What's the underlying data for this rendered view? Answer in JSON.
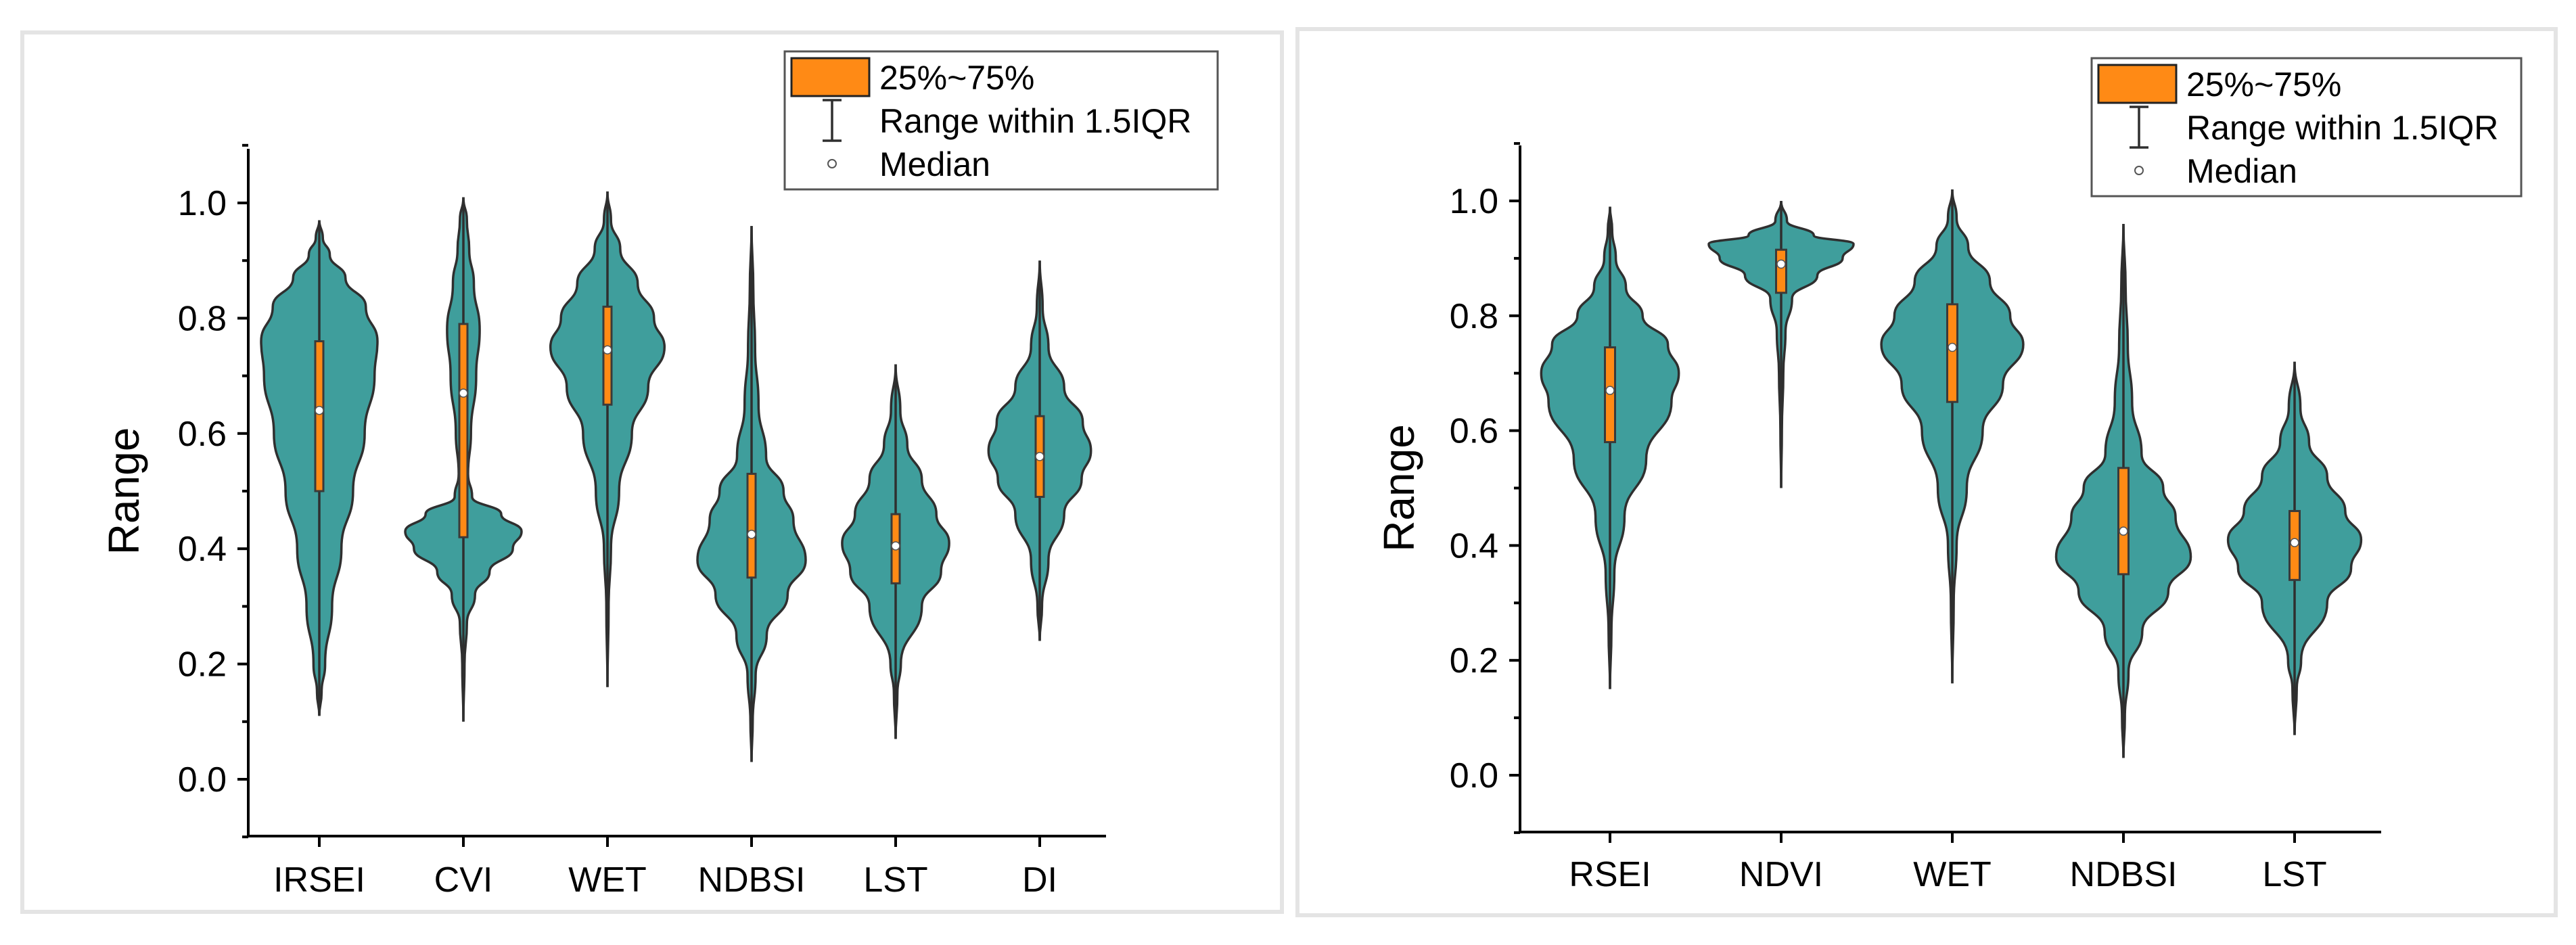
{
  "chart_data": [
    {
      "type": "violin",
      "ylabel": "Range",
      "xlabel": "",
      "ylim": [
        -0.1,
        1.1
      ],
      "yticks": [
        "0.0",
        "0.2",
        "0.4",
        "0.6",
        "0.8",
        "1.0"
      ],
      "legend": {
        "position": "top-right",
        "items": [
          {
            "symbol": "box",
            "label": "25%~75%"
          },
          {
            "symbol": "whisker",
            "label": "Range within 1.5IQR"
          },
          {
            "symbol": "dot",
            "label": "Median"
          }
        ]
      },
      "categories": [
        "IRSEI",
        "CVI",
        "WET",
        "NDBSI",
        "LST",
        "DI"
      ],
      "series": [
        {
          "name": "IRSEI",
          "min": 0.11,
          "max": 0.97,
          "q1": 0.5,
          "median": 0.64,
          "q3": 0.76,
          "density": [
            [
              0.11,
              0.0
            ],
            [
              0.15,
              0.04
            ],
            [
              0.2,
              0.1
            ],
            [
              0.3,
              0.22
            ],
            [
              0.4,
              0.38
            ],
            [
              0.5,
              0.58
            ],
            [
              0.6,
              0.78
            ],
            [
              0.7,
              0.95
            ],
            [
              0.76,
              1.0
            ],
            [
              0.82,
              0.8
            ],
            [
              0.87,
              0.45
            ],
            [
              0.91,
              0.18
            ],
            [
              0.94,
              0.06
            ],
            [
              0.97,
              0.0
            ]
          ]
        },
        {
          "name": "CVI",
          "min": 0.1,
          "max": 1.01,
          "q1": 0.42,
          "median": 0.67,
          "q3": 0.79,
          "density": [
            [
              0.1,
              0.0
            ],
            [
              0.2,
              0.02
            ],
            [
              0.27,
              0.06
            ],
            [
              0.32,
              0.2
            ],
            [
              0.36,
              0.45
            ],
            [
              0.4,
              0.85
            ],
            [
              0.43,
              1.0
            ],
            [
              0.46,
              0.65
            ],
            [
              0.49,
              0.15
            ],
            [
              0.53,
              0.08
            ],
            [
              0.6,
              0.13
            ],
            [
              0.7,
              0.22
            ],
            [
              0.78,
              0.28
            ],
            [
              0.86,
              0.18
            ],
            [
              0.92,
              0.1
            ],
            [
              0.97,
              0.06
            ],
            [
              1.01,
              0.0
            ]
          ]
        },
        {
          "name": "WET",
          "min": 0.16,
          "max": 1.02,
          "q1": 0.65,
          "median": 0.745,
          "q3": 0.82,
          "density": [
            [
              0.16,
              0.0
            ],
            [
              0.3,
              0.02
            ],
            [
              0.4,
              0.06
            ],
            [
              0.5,
              0.2
            ],
            [
              0.6,
              0.42
            ],
            [
              0.68,
              0.7
            ],
            [
              0.75,
              0.98
            ],
            [
              0.8,
              0.8
            ],
            [
              0.86,
              0.52
            ],
            [
              0.92,
              0.22
            ],
            [
              0.97,
              0.06
            ],
            [
              1.02,
              0.0
            ]
          ]
        },
        {
          "name": "NDBSI",
          "min": 0.03,
          "max": 0.96,
          "q1": 0.35,
          "median": 0.425,
          "q3": 0.53,
          "density": [
            [
              0.03,
              0.0
            ],
            [
              0.1,
              0.02
            ],
            [
              0.18,
              0.07
            ],
            [
              0.25,
              0.26
            ],
            [
              0.32,
              0.62
            ],
            [
              0.38,
              0.93
            ],
            [
              0.45,
              0.72
            ],
            [
              0.5,
              0.55
            ],
            [
              0.56,
              0.25
            ],
            [
              0.65,
              0.12
            ],
            [
              0.75,
              0.06
            ],
            [
              0.85,
              0.03
            ],
            [
              0.96,
              0.0
            ]
          ]
        },
        {
          "name": "LST",
          "min": 0.07,
          "max": 0.72,
          "q1": 0.34,
          "median": 0.405,
          "q3": 0.46,
          "density": [
            [
              0.07,
              0.0
            ],
            [
              0.15,
              0.03
            ],
            [
              0.2,
              0.09
            ],
            [
              0.3,
              0.45
            ],
            [
              0.36,
              0.78
            ],
            [
              0.41,
              0.92
            ],
            [
              0.46,
              0.7
            ],
            [
              0.52,
              0.45
            ],
            [
              0.58,
              0.2
            ],
            [
              0.64,
              0.08
            ],
            [
              0.72,
              0.0
            ]
          ]
        },
        {
          "name": "DI",
          "min": 0.24,
          "max": 0.9,
          "q1": 0.49,
          "median": 0.56,
          "q3": 0.63,
          "density": [
            [
              0.24,
              0.0
            ],
            [
              0.3,
              0.04
            ],
            [
              0.38,
              0.15
            ],
            [
              0.46,
              0.42
            ],
            [
              0.52,
              0.72
            ],
            [
              0.57,
              0.88
            ],
            [
              0.62,
              0.74
            ],
            [
              0.68,
              0.42
            ],
            [
              0.75,
              0.15
            ],
            [
              0.82,
              0.05
            ],
            [
              0.9,
              0.0
            ]
          ]
        }
      ],
      "colors": {
        "violin": "#3f9e9c",
        "box": "#ff8a15"
      }
    },
    {
      "type": "violin",
      "ylabel": "Range",
      "xlabel": "",
      "ylim": [
        -0.1,
        1.1
      ],
      "yticks": [
        "0.0",
        "0.2",
        "0.4",
        "0.6",
        "0.8",
        "1.0"
      ],
      "legend": {
        "position": "top-right",
        "items": [
          {
            "symbol": "box",
            "label": "25%~75%"
          },
          {
            "symbol": "whisker",
            "label": "Range within 1.5IQR"
          },
          {
            "symbol": "dot",
            "label": "Median"
          }
        ]
      },
      "categories": [
        "RSEI",
        "NDVI",
        "WET",
        "NDBSI",
        "LST"
      ],
      "series": [
        {
          "name": "RSEI",
          "min": 0.15,
          "max": 0.99,
          "q1": 0.58,
          "median": 0.67,
          "q3": 0.745,
          "density": [
            [
              0.15,
              0.0
            ],
            [
              0.25,
              0.02
            ],
            [
              0.35,
              0.06
            ],
            [
              0.45,
              0.2
            ],
            [
              0.55,
              0.5
            ],
            [
              0.65,
              0.85
            ],
            [
              0.7,
              0.95
            ],
            [
              0.75,
              0.8
            ],
            [
              0.8,
              0.45
            ],
            [
              0.85,
              0.22
            ],
            [
              0.9,
              0.08
            ],
            [
              0.95,
              0.03
            ],
            [
              0.99,
              0.0
            ]
          ]
        },
        {
          "name": "NDVI",
          "min": 0.5,
          "max": 1.0,
          "q1": 0.84,
          "median": 0.89,
          "q3": 0.915,
          "density": [
            [
              0.5,
              0.0
            ],
            [
              0.6,
              0.01
            ],
            [
              0.7,
              0.03
            ],
            [
              0.77,
              0.06
            ],
            [
              0.83,
              0.15
            ],
            [
              0.87,
              0.5
            ],
            [
              0.9,
              0.85
            ],
            [
              0.925,
              1.0
            ],
            [
              0.94,
              0.45
            ],
            [
              0.965,
              0.08
            ],
            [
              1.0,
              0.0
            ]
          ]
        },
        {
          "name": "WET",
          "min": 0.16,
          "max": 1.02,
          "q1": 0.65,
          "median": 0.745,
          "q3": 0.82,
          "density": [
            [
              0.16,
              0.0
            ],
            [
              0.3,
              0.02
            ],
            [
              0.4,
              0.06
            ],
            [
              0.5,
              0.2
            ],
            [
              0.6,
              0.42
            ],
            [
              0.68,
              0.7
            ],
            [
              0.75,
              0.98
            ],
            [
              0.8,
              0.8
            ],
            [
              0.86,
              0.52
            ],
            [
              0.92,
              0.22
            ],
            [
              0.97,
              0.06
            ],
            [
              1.02,
              0.0
            ]
          ]
        },
        {
          "name": "NDBSI",
          "min": 0.03,
          "max": 0.96,
          "q1": 0.35,
          "median": 0.425,
          "q3": 0.535,
          "density": [
            [
              0.03,
              0.0
            ],
            [
              0.1,
              0.02
            ],
            [
              0.18,
              0.07
            ],
            [
              0.25,
              0.26
            ],
            [
              0.32,
              0.62
            ],
            [
              0.38,
              0.93
            ],
            [
              0.45,
              0.72
            ],
            [
              0.5,
              0.55
            ],
            [
              0.56,
              0.25
            ],
            [
              0.65,
              0.12
            ],
            [
              0.75,
              0.06
            ],
            [
              0.85,
              0.03
            ],
            [
              0.96,
              0.0
            ]
          ]
        },
        {
          "name": "LST",
          "min": 0.07,
          "max": 0.72,
          "q1": 0.34,
          "median": 0.405,
          "q3": 0.46,
          "density": [
            [
              0.07,
              0.0
            ],
            [
              0.15,
              0.03
            ],
            [
              0.2,
              0.09
            ],
            [
              0.3,
              0.45
            ],
            [
              0.36,
              0.78
            ],
            [
              0.41,
              0.92
            ],
            [
              0.46,
              0.7
            ],
            [
              0.52,
              0.45
            ],
            [
              0.58,
              0.2
            ],
            [
              0.64,
              0.08
            ],
            [
              0.72,
              0.0
            ]
          ]
        }
      ],
      "colors": {
        "violin": "#3f9e9c",
        "box": "#ff8a15"
      }
    }
  ]
}
